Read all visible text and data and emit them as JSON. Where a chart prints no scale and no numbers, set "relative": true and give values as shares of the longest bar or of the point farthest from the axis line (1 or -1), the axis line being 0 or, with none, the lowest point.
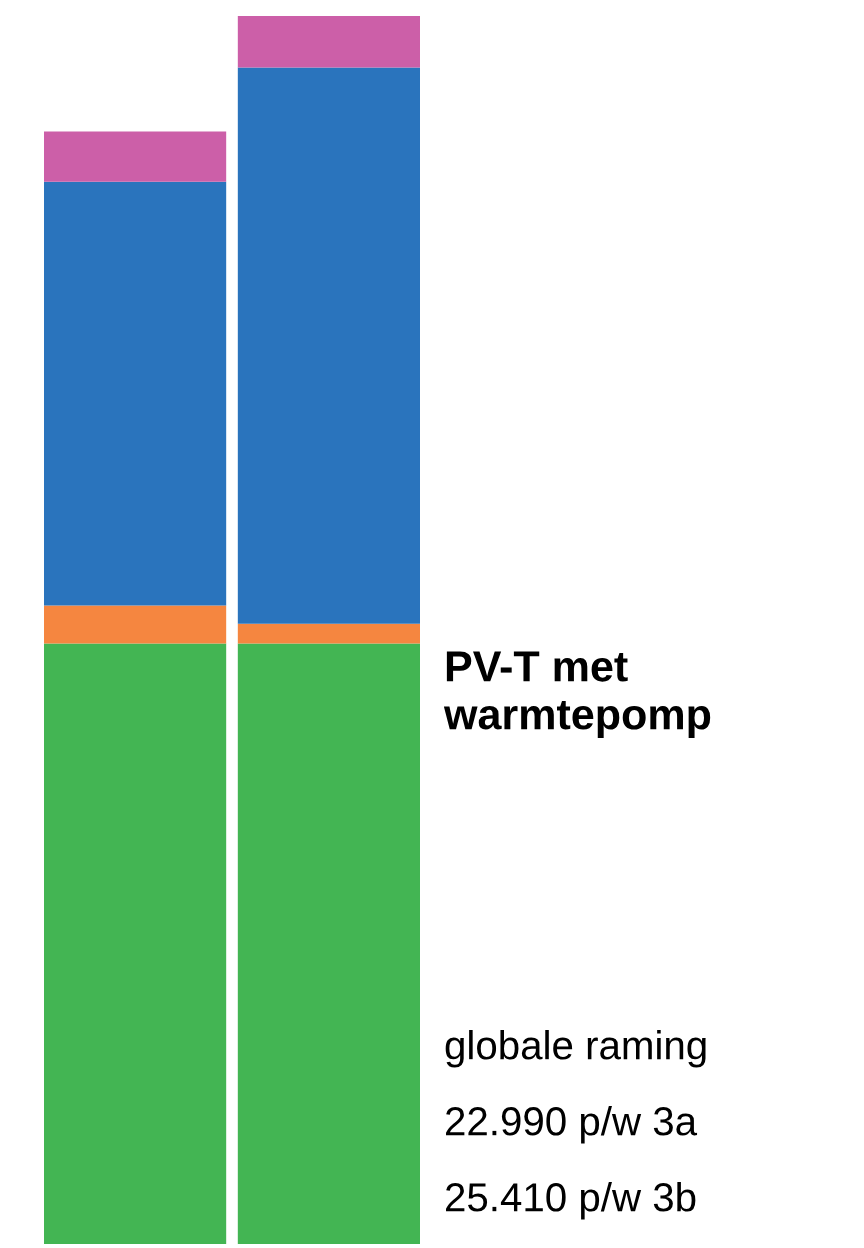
{
  "chart_data": {
    "type": "bar",
    "stacked": true,
    "relative": true,
    "title": "PV-T met warmtepomp",
    "categories": [
      null,
      null
    ],
    "series": [
      {
        "color": "#43b553",
        "values": [
          0.489,
          0.489
        ]
      },
      {
        "color": "#f58640",
        "values": [
          0.031,
          0.016
        ]
      },
      {
        "color": "#2a74bd",
        "values": [
          0.345,
          0.453
        ]
      },
      {
        "color": "#cc5fa8",
        "values": [
          0.041,
          0.042
        ]
      }
    ],
    "annotations": [
      "globale raming",
      "22.990 p/w 3a",
      "25.410 p/w 3b"
    ],
    "grid": false,
    "legend": false
  }
}
